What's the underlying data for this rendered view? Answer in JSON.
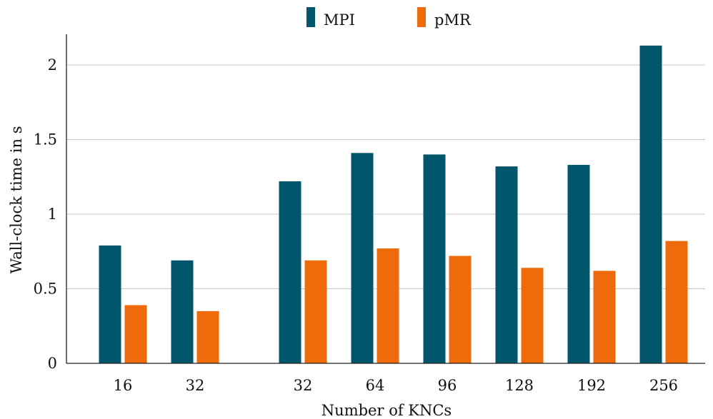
{
  "colors": {
    "mpi": "#02566b",
    "pmr": "#ee6a0a",
    "grid": "#c8c8c8",
    "axis": "#222222"
  },
  "legend": {
    "position": "top-center",
    "items": [
      "MPI",
      "pMR"
    ]
  },
  "chart_data": {
    "type": "bar",
    "title": "",
    "xlabel": "Number of KNCs",
    "ylabel": "Wall-clock time in s",
    "ylim": [
      0,
      2.2
    ],
    "yticks": [
      "0",
      "0.5",
      "1",
      "1.5",
      "2"
    ],
    "grid": "horizontal",
    "groups": [
      {
        "categories": [
          "16",
          "32"
        ]
      },
      {
        "categories": [
          "32",
          "64",
          "96",
          "128",
          "192",
          "256"
        ]
      }
    ],
    "categories": [
      "16",
      "32",
      "32",
      "64",
      "96",
      "128",
      "192",
      "256"
    ],
    "series": [
      {
        "name": "MPI",
        "values": [
          0.79,
          0.69,
          1.22,
          1.41,
          1.4,
          1.32,
          1.33,
          2.13
        ]
      },
      {
        "name": "pMR",
        "values": [
          0.39,
          0.35,
          0.69,
          0.77,
          0.72,
          0.64,
          0.62,
          0.82
        ]
      }
    ]
  }
}
